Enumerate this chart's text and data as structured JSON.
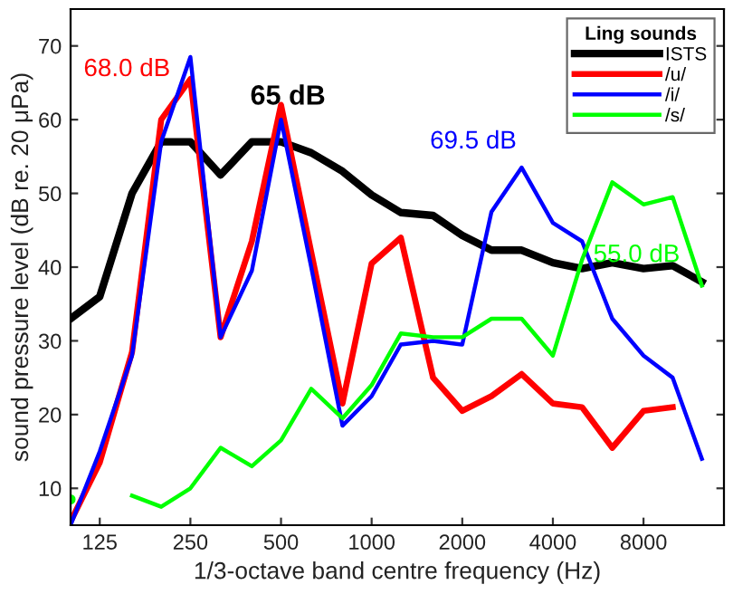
{
  "chart_data": {
    "type": "line",
    "xlabel": "1/3-octave band centre frequency (Hz)",
    "ylabel": "sound pressure level (dB re. 20 μPa)",
    "legend_title": "Ling sounds",
    "x": [
      100,
      125,
      160,
      200,
      250,
      315,
      400,
      500,
      630,
      800,
      1000,
      1250,
      1600,
      2000,
      2500,
      3150,
      4000,
      5000,
      6300,
      8000,
      10000,
      12500
    ],
    "series": [
      {
        "name": "ISTS",
        "color": "#000000",
        "values": [
          33,
          36,
          50,
          57,
          57,
          52.5,
          57,
          57,
          55.5,
          53,
          49.8,
          47.4,
          47,
          44.3,
          42.3,
          42.3,
          40.6,
          39.8,
          40.6,
          39.8,
          40.2,
          38
        ]
      },
      {
        "name": "/u/",
        "color": "#ff0000",
        "values": [
          5.5,
          13.5,
          28.5,
          60,
          65.5,
          30.5,
          43.5,
          62,
          42,
          21.5,
          40.5,
          44,
          25,
          20.5,
          22.5,
          25.5,
          21.5,
          21,
          15.5,
          20.5,
          21,
          null
        ]
      },
      {
        "name": "/i/",
        "color": "#0000ff",
        "values": [
          5,
          15,
          28,
          57,
          68.5,
          30.5,
          39.5,
          60,
          40,
          18.5,
          22.5,
          29.5,
          30,
          29.5,
          47.5,
          53.5,
          46,
          43.5,
          33,
          28,
          25,
          14
        ]
      },
      {
        "name": "/s/",
        "color": "#00ff00",
        "values": [
          8.5,
          null,
          9,
          7.5,
          10,
          15.5,
          13,
          16.5,
          23.5,
          19.5,
          24,
          31,
          30.5,
          30.5,
          33,
          33,
          28,
          41,
          51.5,
          48.5,
          49.5,
          37.5
        ]
      }
    ],
    "annotations": [
      "68.0 dB",
      "65 dB",
      "69.5 dB",
      "55.0 dB"
    ],
    "log": "x",
    "xlim": [
      100,
      14800
    ],
    "xticks": [
      125,
      250,
      500,
      1000,
      2000,
      4000,
      8000
    ],
    "ylim": [
      5,
      75
    ],
    "yticks": [
      10,
      20,
      30,
      40,
      50,
      60,
      70
    ],
    "grid": false,
    "legend": "top right",
    "marker": "none",
    "line_style": "solid"
  }
}
